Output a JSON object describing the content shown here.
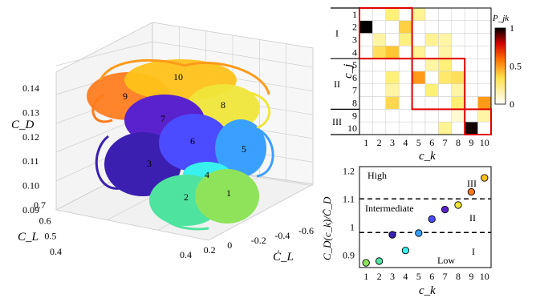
{
  "chart_data": [
    {
      "type": "scatter",
      "subtype": "3d-cluster-trajectory",
      "axes": {
        "x": {
          "label": "Ċ_L",
          "ticks": [
            "-0.6",
            "-0.4",
            "-0.2",
            "0",
            "0.2",
            "0.4"
          ]
        },
        "y": {
          "label": "C_L",
          "ticks": [
            "0.4",
            "0.5",
            "0.6",
            "0.7"
          ]
        },
        "z": {
          "label": "C_D",
          "ticks": [
            "0.09",
            "0.10",
            "0.11",
            "0.12",
            "0.13",
            "0.14"
          ]
        }
      },
      "grid": true,
      "clusters": [
        {
          "label": "1",
          "color": "#8fe35a"
        },
        {
          "label": "2",
          "color": "#4fe3a0"
        },
        {
          "label": "3",
          "color": "#3a1fb0"
        },
        {
          "label": "4",
          "color": "#38f0ee"
        },
        {
          "label": "5",
          "color": "#3aa0ff"
        },
        {
          "label": "6",
          "color": "#4b4bff"
        },
        {
          "label": "7",
          "color": "#5a22cc"
        },
        {
          "label": "8",
          "color": "#f0e63a"
        },
        {
          "label": "9",
          "color": "#ff7a1a"
        },
        {
          "label": "10",
          "color": "#ffc21a"
        }
      ]
    },
    {
      "type": "heatmap",
      "xlabel": "c_k",
      "ylabel": "c_j",
      "colorbar_label": "P_jk",
      "colorbar_ticks": [
        "0",
        "0.5",
        "1"
      ],
      "x_ticks": [
        "1",
        "2",
        "3",
        "4",
        "5",
        "6",
        "7",
        "8",
        "9",
        "10"
      ],
      "y_ticks": [
        "1",
        "2",
        "3",
        "4",
        "5",
        "6",
        "7",
        "8",
        "9",
        "10"
      ],
      "groups": [
        {
          "label": "I",
          "rows": [
            1,
            4
          ]
        },
        {
          "label": "II",
          "rows": [
            5,
            8
          ]
        },
        {
          "label": "III",
          "rows": [
            9,
            10
          ]
        }
      ],
      "matrix": [
        [
          0,
          0,
          0.15,
          0,
          0.12,
          0,
          0,
          0,
          0,
          0
        ],
        [
          1.0,
          0,
          0,
          0.28,
          0,
          0,
          0,
          0,
          0,
          0
        ],
        [
          0,
          0.1,
          0,
          0.14,
          0,
          0.12,
          0.1,
          0,
          0,
          0
        ],
        [
          0,
          0.22,
          0.32,
          0,
          0.12,
          0,
          0.1,
          0,
          0,
          0
        ],
        [
          0,
          0,
          0,
          0,
          0,
          0.1,
          0.15,
          0,
          0,
          0
        ],
        [
          0,
          0,
          0.15,
          0,
          0.45,
          0,
          0.18,
          0.22,
          0,
          0
        ],
        [
          0,
          0,
          0.1,
          0,
          0,
          0.15,
          0,
          0.1,
          0,
          0
        ],
        [
          0,
          0,
          0.25,
          0,
          0,
          0,
          0,
          0.16,
          0,
          0.45
        ],
        [
          0,
          0,
          0,
          0,
          0,
          0,
          0,
          0.05,
          0,
          0.1
        ],
        [
          0,
          0,
          0,
          0,
          0,
          0,
          0.12,
          0,
          0.98,
          0
        ]
      ]
    },
    {
      "type": "scatter",
      "xlabel": "c_k",
      "ylabel": "C_D(c_k)/C̄_D",
      "x_ticks": [
        "1",
        "2",
        "3",
        "4",
        "5",
        "6",
        "7",
        "8",
        "9",
        "10"
      ],
      "y_ticks": [
        "0.9",
        "1",
        "1.1",
        "1.2"
      ],
      "xlim": [
        0.5,
        10.5
      ],
      "ylim": [
        0.855,
        1.215
      ],
      "thresholds": [
        0.98,
        1.1
      ],
      "region_labels": {
        "high": "High",
        "intermediate": "Intermediate",
        "low": "Low"
      },
      "group_labels": [
        "I",
        "II",
        "III"
      ],
      "points": [
        {
          "x": 1,
          "y": 0.872,
          "color": "#8fe35a"
        },
        {
          "x": 2,
          "y": 0.878,
          "color": "#4fe3a0"
        },
        {
          "x": 3,
          "y": 0.972,
          "color": "#3a1fb0"
        },
        {
          "x": 4,
          "y": 0.916,
          "color": "#38f0ee"
        },
        {
          "x": 5,
          "y": 0.978,
          "color": "#3aa0ff"
        },
        {
          "x": 6,
          "y": 1.028,
          "color": "#4b4bff"
        },
        {
          "x": 7,
          "y": 1.062,
          "color": "#5a22cc"
        },
        {
          "x": 8,
          "y": 1.078,
          "color": "#f0e63a"
        },
        {
          "x": 9,
          "y": 1.125,
          "color": "#ff7a1a"
        },
        {
          "x": 10,
          "y": 1.175,
          "color": "#ffc21a"
        }
      ]
    }
  ]
}
